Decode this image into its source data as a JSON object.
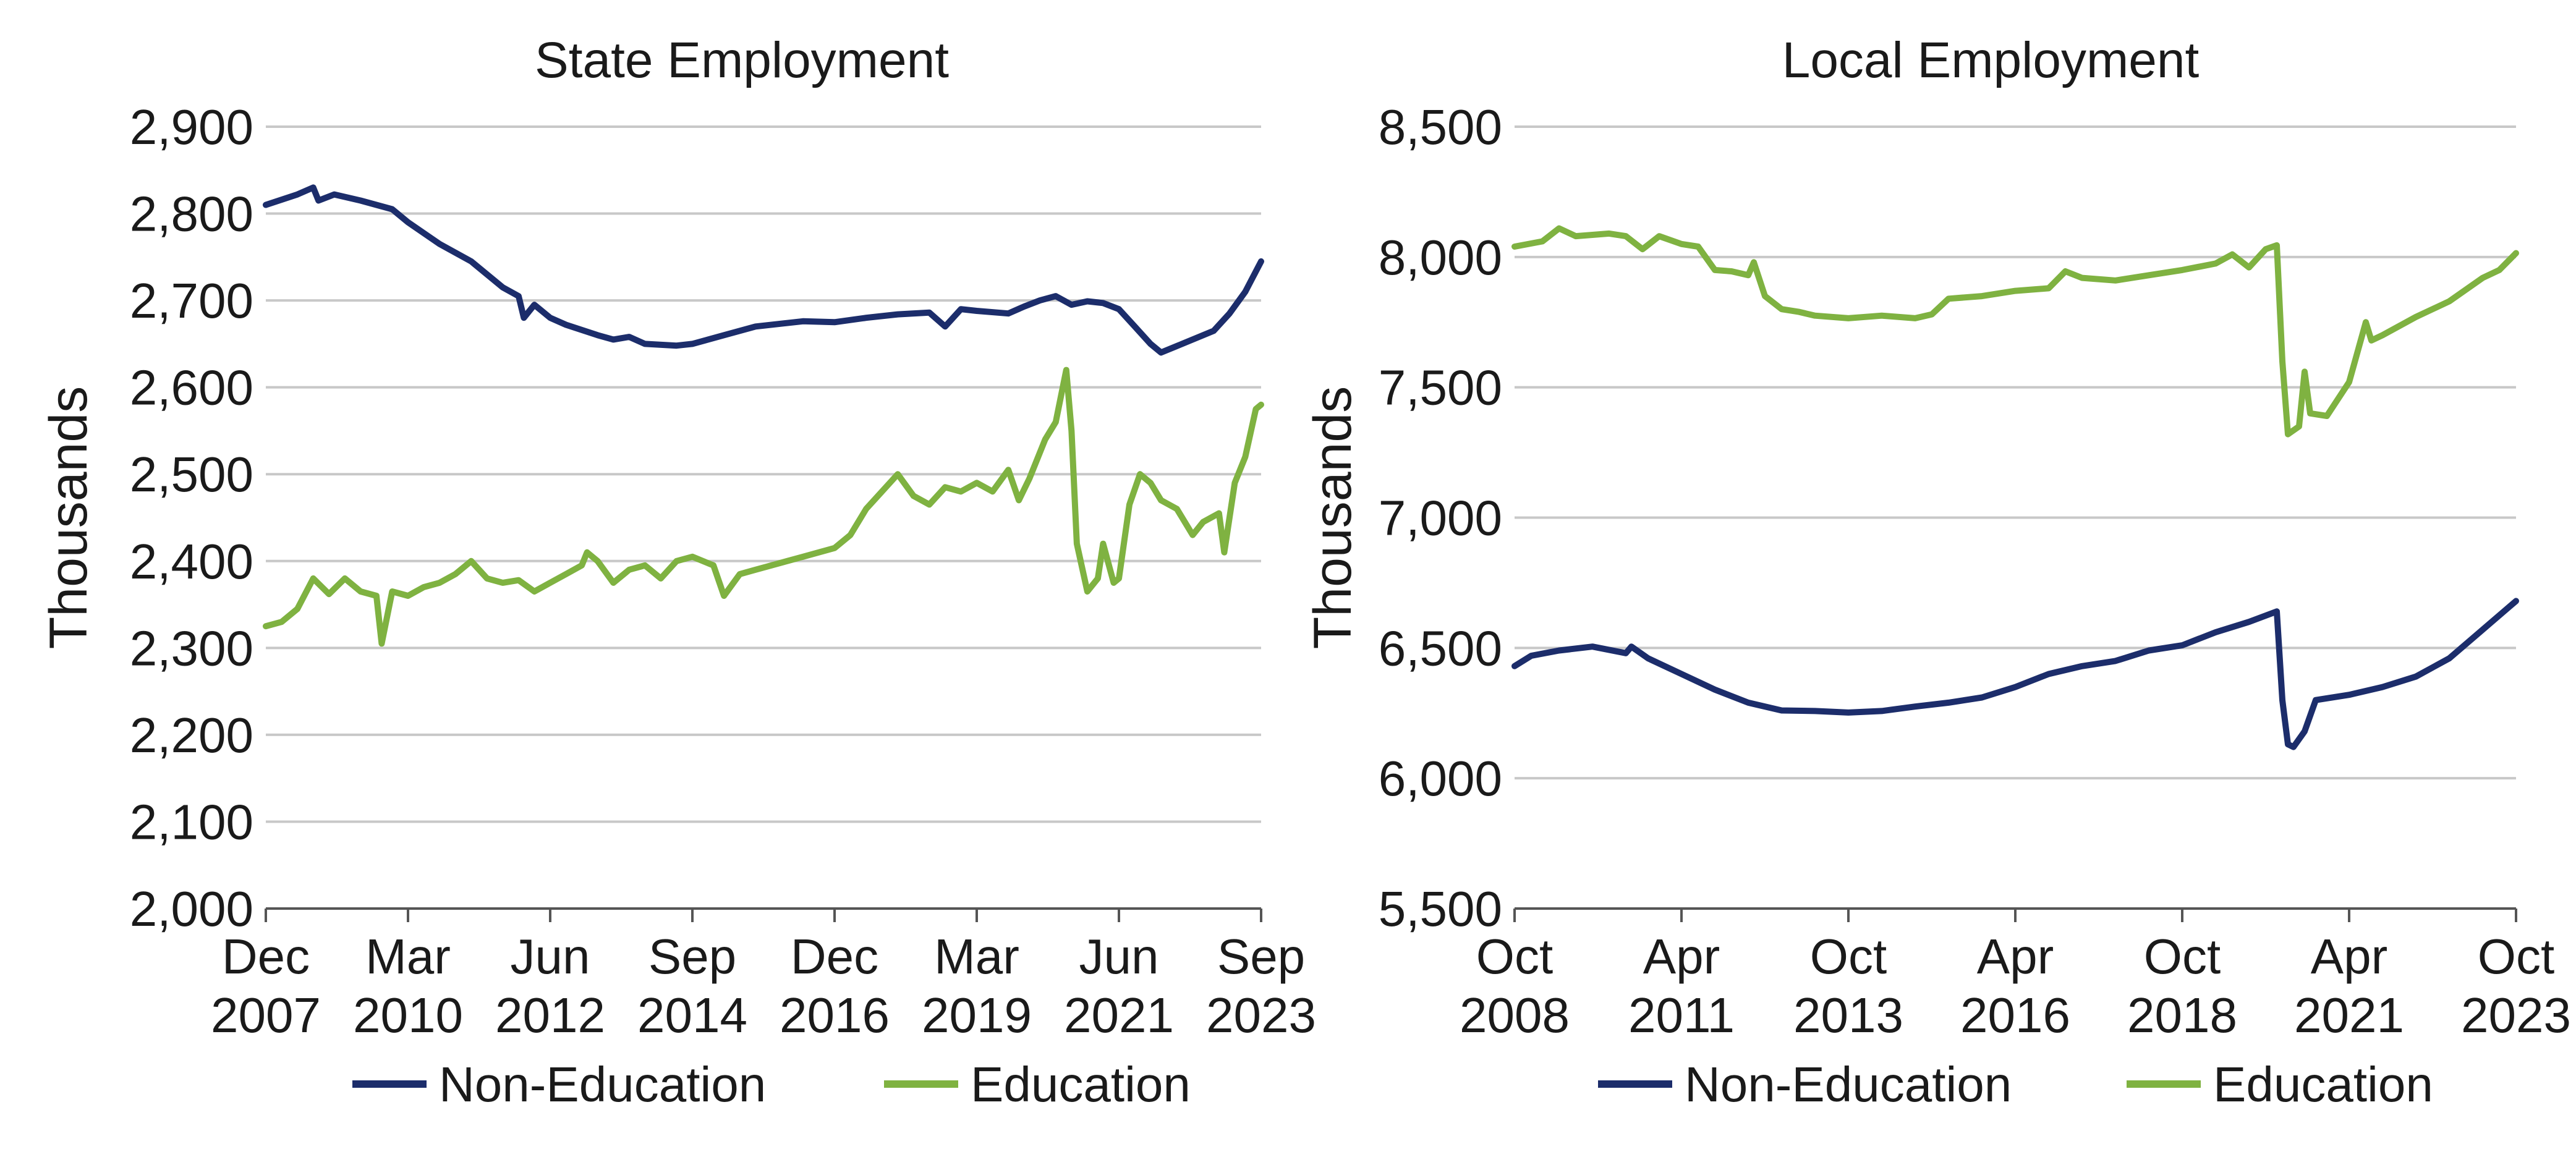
{
  "colors": {
    "non_education": "#1c2d6b",
    "education": "#7fb241"
  },
  "chart_data": [
    {
      "type": "line",
      "title": "State Employment",
      "ylabel": "Thousands",
      "xlabel": "",
      "ylim": [
        2000,
        2900
      ],
      "yticks": [
        2000,
        2100,
        2200,
        2300,
        2400,
        2500,
        2600,
        2700,
        2800,
        2900
      ],
      "ytick_labels": [
        "2,000",
        "2,100",
        "2,200",
        "2,300",
        "2,400",
        "2,500",
        "2,600",
        "2,700",
        "2,800",
        "2,900"
      ],
      "xlim": [
        "2007-12",
        "2023-09"
      ],
      "xticks": [
        {
          "date": "2007-12",
          "line1": "Dec",
          "line2": "2007"
        },
        {
          "date": "2010-03",
          "line1": "Mar",
          "line2": "2010"
        },
        {
          "date": "2012-06",
          "line1": "Jun",
          "line2": "2012"
        },
        {
          "date": "2014-09",
          "line1": "Sep",
          "line2": "2014"
        },
        {
          "date": "2016-12",
          "line1": "Dec",
          "line2": "2016"
        },
        {
          "date": "2019-03",
          "line1": "Mar",
          "line2": "2019"
        },
        {
          "date": "2021-06",
          "line1": "Jun",
          "line2": "2021"
        },
        {
          "date": "2023-09",
          "line1": "Sep",
          "line2": "2023"
        }
      ],
      "grid": "horizontal",
      "legend": "bottom",
      "series": [
        {
          "name": "Non-Education",
          "color_key": "non_education",
          "points": [
            [
              "2007-12",
              2810
            ],
            [
              "2008-06",
              2822
            ],
            [
              "2008-09",
              2830
            ],
            [
              "2008-10",
              2815
            ],
            [
              "2009-01",
              2822
            ],
            [
              "2009-06",
              2815
            ],
            [
              "2009-12",
              2805
            ],
            [
              "2010-03",
              2790
            ],
            [
              "2010-09",
              2765
            ],
            [
              "2011-03",
              2745
            ],
            [
              "2011-09",
              2715
            ],
            [
              "2011-12",
              2705
            ],
            [
              "2012-01",
              2680
            ],
            [
              "2012-03",
              2695
            ],
            [
              "2012-06",
              2680
            ],
            [
              "2012-09",
              2672
            ],
            [
              "2013-03",
              2660
            ],
            [
              "2013-06",
              2655
            ],
            [
              "2013-09",
              2658
            ],
            [
              "2013-12",
              2650
            ],
            [
              "2014-06",
              2648
            ],
            [
              "2014-09",
              2650
            ],
            [
              "2015-03",
              2660
            ],
            [
              "2015-09",
              2670
            ],
            [
              "2016-06",
              2676
            ],
            [
              "2016-12",
              2675
            ],
            [
              "2017-06",
              2680
            ],
            [
              "2017-12",
              2684
            ],
            [
              "2018-06",
              2686
            ],
            [
              "2018-09",
              2670
            ],
            [
              "2018-12",
              2690
            ],
            [
              "2019-03",
              2688
            ],
            [
              "2019-09",
              2685
            ],
            [
              "2019-12",
              2693
            ],
            [
              "2020-03",
              2700
            ],
            [
              "2020-06",
              2705
            ],
            [
              "2020-09",
              2695
            ],
            [
              "2020-12",
              2699
            ],
            [
              "2021-03",
              2697
            ],
            [
              "2021-06",
              2690
            ],
            [
              "2021-09",
              2670
            ],
            [
              "2021-12",
              2650
            ],
            [
              "2022-02",
              2640
            ],
            [
              "2022-06",
              2650
            ],
            [
              "2022-12",
              2665
            ],
            [
              "2023-03",
              2685
            ],
            [
              "2023-06",
              2710
            ],
            [
              "2023-09",
              2745
            ]
          ]
        },
        {
          "name": "Education",
          "color_key": "education",
          "points": [
            [
              "2007-12",
              2325
            ],
            [
              "2008-03",
              2330
            ],
            [
              "2008-06",
              2345
            ],
            [
              "2008-09",
              2380
            ],
            [
              "2008-12",
              2362
            ],
            [
              "2009-03",
              2380
            ],
            [
              "2009-06",
              2365
            ],
            [
              "2009-09",
              2360
            ],
            [
              "2009-10",
              2305
            ],
            [
              "2009-12",
              2365
            ],
            [
              "2010-03",
              2360
            ],
            [
              "2010-06",
              2370
            ],
            [
              "2010-09",
              2375
            ],
            [
              "2010-12",
              2385
            ],
            [
              "2011-03",
              2400
            ],
            [
              "2011-06",
              2380
            ],
            [
              "2011-09",
              2375
            ],
            [
              "2011-12",
              2378
            ],
            [
              "2012-03",
              2365
            ],
            [
              "2012-06",
              2375
            ],
            [
              "2012-09",
              2385
            ],
            [
              "2012-12",
              2395
            ],
            [
              "2013-01",
              2410
            ],
            [
              "2013-03",
              2400
            ],
            [
              "2013-06",
              2375
            ],
            [
              "2013-09",
              2390
            ],
            [
              "2013-12",
              2395
            ],
            [
              "2014-03",
              2380
            ],
            [
              "2014-06",
              2400
            ],
            [
              "2014-09",
              2405
            ],
            [
              "2015-01",
              2395
            ],
            [
              "2015-03",
              2360
            ],
            [
              "2015-06",
              2385
            ],
            [
              "2015-09",
              2390
            ],
            [
              "2015-12",
              2395
            ],
            [
              "2016-06",
              2405
            ],
            [
              "2016-12",
              2415
            ],
            [
              "2017-03",
              2430
            ],
            [
              "2017-06",
              2460
            ],
            [
              "2017-09",
              2480
            ],
            [
              "2017-12",
              2500
            ],
            [
              "2018-03",
              2475
            ],
            [
              "2018-06",
              2465
            ],
            [
              "2018-09",
              2485
            ],
            [
              "2018-12",
              2480
            ],
            [
              "2019-03",
              2490
            ],
            [
              "2019-06",
              2480
            ],
            [
              "2019-09",
              2505
            ],
            [
              "2019-11",
              2470
            ],
            [
              "2020-01",
              2495
            ],
            [
              "2020-04",
              2540
            ],
            [
              "2020-06",
              2560
            ],
            [
              "2020-08",
              2620
            ],
            [
              "2020-09",
              2550
            ],
            [
              "2020-10",
              2420
            ],
            [
              "2020-12",
              2365
            ],
            [
              "2021-02",
              2380
            ],
            [
              "2021-03",
              2420
            ],
            [
              "2021-05",
              2375
            ],
            [
              "2021-06",
              2380
            ],
            [
              "2021-08",
              2465
            ],
            [
              "2021-10",
              2500
            ],
            [
              "2021-12",
              2490
            ],
            [
              "2022-02",
              2470
            ],
            [
              "2022-05",
              2460
            ],
            [
              "2022-08",
              2430
            ],
            [
              "2022-10",
              2445
            ],
            [
              "2023-01",
              2455
            ],
            [
              "2023-02",
              2410
            ],
            [
              "2023-04",
              2490
            ],
            [
              "2023-06",
              2520
            ],
            [
              "2023-08",
              2575
            ],
            [
              "2023-09",
              2580
            ]
          ]
        }
      ]
    },
    {
      "type": "line",
      "title": "Local Employment",
      "ylabel": "Thousands",
      "xlabel": "",
      "ylim": [
        5500,
        8500
      ],
      "yticks": [
        5500,
        6000,
        6500,
        7000,
        7500,
        8000,
        8500
      ],
      "ytick_labels": [
        "5,500",
        "6,000",
        "6,500",
        "7,000",
        "7,500",
        "8,000",
        "8,500"
      ],
      "xlim": [
        "2008-10",
        "2023-10"
      ],
      "xticks": [
        {
          "date": "2008-10",
          "line1": "Oct",
          "line2": "2008"
        },
        {
          "date": "2011-04",
          "line1": "Apr",
          "line2": "2011"
        },
        {
          "date": "2013-10",
          "line1": "Oct",
          "line2": "2013"
        },
        {
          "date": "2016-04",
          "line1": "Apr",
          "line2": "2016"
        },
        {
          "date": "2018-10",
          "line1": "Oct",
          "line2": "2018"
        },
        {
          "date": "2021-04",
          "line1": "Apr",
          "line2": "2021"
        },
        {
          "date": "2023-10",
          "line1": "Oct",
          "line2": "2023"
        }
      ],
      "grid": "horizontal",
      "legend": "bottom",
      "series": [
        {
          "name": "Non-Education",
          "color_key": "non_education",
          "points": [
            [
              "2008-10",
              6430
            ],
            [
              "2009-01",
              6470
            ],
            [
              "2009-06",
              6490
            ],
            [
              "2009-12",
              6505
            ],
            [
              "2010-06",
              6480
            ],
            [
              "2010-07",
              6505
            ],
            [
              "2010-10",
              6460
            ],
            [
              "2011-04",
              6400
            ],
            [
              "2011-10",
              6340
            ],
            [
              "2012-04",
              6290
            ],
            [
              "2012-10",
              6260
            ],
            [
              "2013-04",
              6258
            ],
            [
              "2013-10",
              6252
            ],
            [
              "2014-04",
              6258
            ],
            [
              "2014-10",
              6275
            ],
            [
              "2015-04",
              6290
            ],
            [
              "2015-10",
              6310
            ],
            [
              "2016-04",
              6350
            ],
            [
              "2016-10",
              6400
            ],
            [
              "2017-04",
              6430
            ],
            [
              "2017-10",
              6450
            ],
            [
              "2018-04",
              6490
            ],
            [
              "2018-10",
              6510
            ],
            [
              "2019-04",
              6560
            ],
            [
              "2019-10",
              6600
            ],
            [
              "2020-03",
              6640
            ],
            [
              "2020-04",
              6300
            ],
            [
              "2020-05",
              6130
            ],
            [
              "2020-06",
              6120
            ],
            [
              "2020-08",
              6180
            ],
            [
              "2020-10",
              6300
            ],
            [
              "2021-04",
              6320
            ],
            [
              "2021-10",
              6350
            ],
            [
              "2022-04",
              6390
            ],
            [
              "2022-10",
              6460
            ],
            [
              "2023-04",
              6570
            ],
            [
              "2023-10",
              6680
            ]
          ]
        },
        {
          "name": "Education",
          "color_key": "education",
          "points": [
            [
              "2008-10",
              8040
            ],
            [
              "2009-03",
              8060
            ],
            [
              "2009-06",
              8110
            ],
            [
              "2009-09",
              8080
            ],
            [
              "2010-03",
              8090
            ],
            [
              "2010-06",
              8080
            ],
            [
              "2010-09",
              8030
            ],
            [
              "2010-12",
              8080
            ],
            [
              "2011-04",
              8050
            ],
            [
              "2011-07",
              8040
            ],
            [
              "2011-10",
              7950
            ],
            [
              "2012-01",
              7945
            ],
            [
              "2012-04",
              7930
            ],
            [
              "2012-05",
              7980
            ],
            [
              "2012-07",
              7850
            ],
            [
              "2012-10",
              7800
            ],
            [
              "2013-01",
              7790
            ],
            [
              "2013-04",
              7775
            ],
            [
              "2013-10",
              7765
            ],
            [
              "2014-04",
              7775
            ],
            [
              "2014-10",
              7765
            ],
            [
              "2015-01",
              7780
            ],
            [
              "2015-04",
              7840
            ],
            [
              "2015-10",
              7850
            ],
            [
              "2016-04",
              7870
            ],
            [
              "2016-10",
              7880
            ],
            [
              "2017-01",
              7945
            ],
            [
              "2017-04",
              7920
            ],
            [
              "2017-10",
              7910
            ],
            [
              "2018-04",
              7930
            ],
            [
              "2018-10",
              7950
            ],
            [
              "2019-04",
              7975
            ],
            [
              "2019-07",
              8010
            ],
            [
              "2019-10",
              7960
            ],
            [
              "2020-01",
              8030
            ],
            [
              "2020-03",
              8045
            ],
            [
              "2020-04",
              7600
            ],
            [
              "2020-05",
              7320
            ],
            [
              "2020-07",
              7350
            ],
            [
              "2020-08",
              7560
            ],
            [
              "2020-09",
              7400
            ],
            [
              "2020-12",
              7390
            ],
            [
              "2021-04",
              7520
            ],
            [
              "2021-07",
              7750
            ],
            [
              "2021-08",
              7680
            ],
            [
              "2021-10",
              7700
            ],
            [
              "2022-04",
              7770
            ],
            [
              "2022-10",
              7830
            ],
            [
              "2023-04",
              7920
            ],
            [
              "2023-07",
              7950
            ],
            [
              "2023-10",
              8015
            ]
          ]
        }
      ]
    }
  ]
}
